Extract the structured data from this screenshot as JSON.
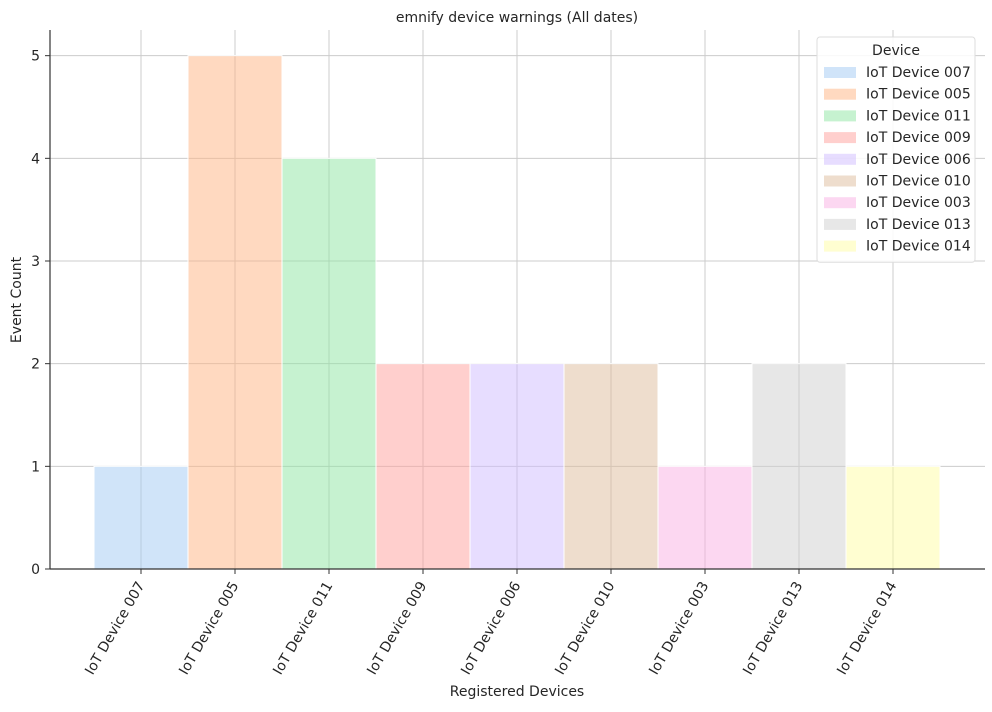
{
  "chart_data": {
    "type": "bar",
    "title": "emnify device warnings (All dates)",
    "x_label": "Registered Devices",
    "y_label": "Event Count",
    "categories": [
      "IoT Device 007",
      "IoT Device 005",
      "IoT Device 011",
      "IoT Device 009",
      "IoT Device 006",
      "IoT Device 010",
      "IoT Device 003",
      "IoT Device 013",
      "IoT Device 014"
    ],
    "values": [
      1,
      5,
      4,
      2,
      2,
      2,
      1,
      2,
      1
    ],
    "colors": [
      "#a1c9f4",
      "#ffb482",
      "#8de5a1",
      "#ff9f9b",
      "#d0bbff",
      "#debb9b",
      "#fab0e4",
      "#cfcfcf",
      "#fffea3"
    ],
    "ylim": [
      0,
      5.25
    ],
    "yticks": [
      0,
      1,
      2,
      3,
      4,
      5
    ],
    "grid": true,
    "legend_title": "Device",
    "legend_loc": "upper right"
  }
}
